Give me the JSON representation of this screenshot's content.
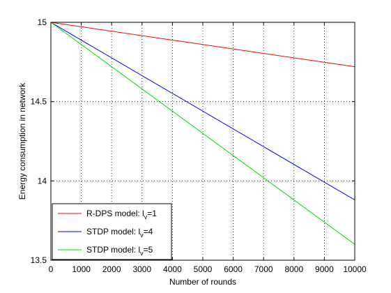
{
  "chart_data": {
    "type": "line",
    "title": "",
    "xlabel": "Number of rounds",
    "ylabel": "Energy consumption in network",
    "xlim": [
      0,
      10000
    ],
    "ylim": [
      13.5,
      15
    ],
    "xticks": [
      0,
      1000,
      2000,
      3000,
      4000,
      5000,
      6000,
      7000,
      8000,
      9000,
      10000
    ],
    "yticks": [
      13.5,
      14,
      14.5,
      15
    ],
    "xtick_labels": [
      "0",
      "1000",
      "2000",
      "3000",
      "4000",
      "5000",
      "6000",
      "7000",
      "8000",
      "9000",
      "10000"
    ],
    "ytick_labels": [
      "13.5",
      "14",
      "14.5",
      "15"
    ],
    "grid": true,
    "legend_position": "bottom-left",
    "series": [
      {
        "label_main": "R-DPS model: l",
        "label_sub": "v",
        "label_tail": "=1",
        "color": "#ff0000",
        "x": [
          0,
          10000
        ],
        "y": [
          15.0,
          14.72
        ]
      },
      {
        "label_main": "STDP model: l",
        "label_sub": "v",
        "label_tail": "=4",
        "color": "#0000ff",
        "x": [
          0,
          10000
        ],
        "y": [
          15.0,
          13.88
        ]
      },
      {
        "label_main": "STDP model: l",
        "label_sub": "v",
        "label_tail": "=5",
        "color": "#00dd00",
        "x": [
          0,
          10000
        ],
        "y": [
          15.0,
          13.6
        ]
      }
    ]
  }
}
